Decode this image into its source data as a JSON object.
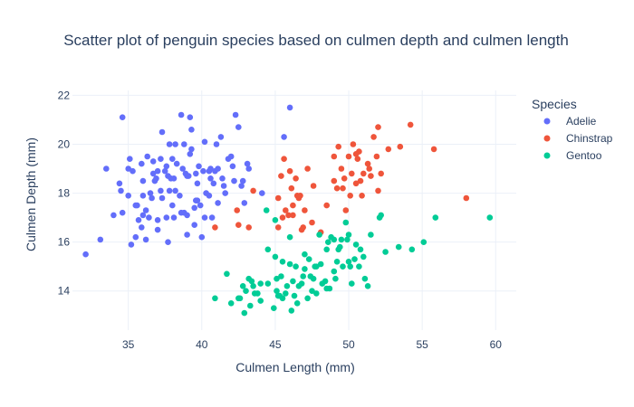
{
  "chart_data": {
    "type": "scatter",
    "title": "Scatter plot of penguin species based on culmen depth and culmen length",
    "xlabel": "Culmen Length (mm)",
    "ylabel": "Culmen Depth (mm)",
    "xlim": [
      31.2,
      61.4
    ],
    "ylim": [
      12.4,
      22.2
    ],
    "x_ticks": [
      35,
      40,
      45,
      50,
      55,
      60
    ],
    "y_ticks": [
      14,
      16,
      18,
      20,
      22
    ],
    "grid": true,
    "legend_title": "Species",
    "legend_position": "top-right",
    "series": [
      {
        "name": "Adelie",
        "color": "#636efa",
        "points": [
          [
            32.1,
            15.5
          ],
          [
            33.1,
            16.1
          ],
          [
            33.5,
            19.0
          ],
          [
            34.0,
            17.1
          ],
          [
            34.4,
            18.4
          ],
          [
            34.5,
            18.1
          ],
          [
            34.6,
            21.1
          ],
          [
            34.6,
            17.2
          ],
          [
            35.0,
            17.9
          ],
          [
            35.1,
            19.4
          ],
          [
            35.2,
            15.9
          ],
          [
            35.3,
            18.9
          ],
          [
            35.5,
            16.2
          ],
          [
            35.5,
            17.5
          ],
          [
            35.6,
            17.5
          ],
          [
            35.7,
            16.9
          ],
          [
            35.9,
            19.2
          ],
          [
            35.9,
            16.6
          ],
          [
            36.0,
            18.5
          ],
          [
            36.0,
            17.1
          ],
          [
            36.2,
            16.1
          ],
          [
            36.2,
            17.3
          ],
          [
            36.3,
            19.5
          ],
          [
            36.4,
            17.0
          ],
          [
            36.5,
            18.0
          ],
          [
            36.6,
            17.8
          ],
          [
            36.7,
            18.8
          ],
          [
            36.7,
            19.3
          ],
          [
            36.8,
            18.5
          ],
          [
            36.9,
            18.6
          ],
          [
            37.0,
            16.9
          ],
          [
            37.2,
            18.1
          ],
          [
            37.2,
            19.4
          ],
          [
            37.3,
            20.5
          ],
          [
            37.3,
            17.8
          ],
          [
            37.5,
            18.9
          ],
          [
            37.6,
            19.1
          ],
          [
            37.6,
            17.0
          ],
          [
            37.7,
            18.7
          ],
          [
            37.7,
            16.0
          ],
          [
            37.8,
            18.1
          ],
          [
            37.8,
            20.0
          ],
          [
            37.9,
            18.6
          ],
          [
            38.1,
            18.6
          ],
          [
            38.1,
            17.0
          ],
          [
            38.2,
            18.1
          ],
          [
            38.2,
            20.0
          ],
          [
            38.3,
            19.2
          ],
          [
            38.5,
            17.9
          ],
          [
            38.6,
            21.2
          ],
          [
            38.6,
            17.2
          ],
          [
            38.7,
            19.0
          ],
          [
            38.8,
            17.2
          ],
          [
            38.8,
            20.0
          ],
          [
            38.9,
            18.8
          ],
          [
            39.0,
            17.1
          ],
          [
            39.0,
            18.7
          ],
          [
            39.1,
            18.7
          ],
          [
            39.2,
            19.6
          ],
          [
            39.2,
            21.1
          ],
          [
            39.3,
            20.6
          ],
          [
            39.5,
            17.4
          ],
          [
            39.5,
            16.7
          ],
          [
            39.6,
            17.7
          ],
          [
            39.6,
            18.8
          ],
          [
            39.7,
            18.4
          ],
          [
            39.7,
            17.7
          ],
          [
            39.8,
            19.1
          ],
          [
            39.9,
            17.5
          ],
          [
            40.1,
            18.9
          ],
          [
            40.2,
            17.0
          ],
          [
            40.2,
            20.1
          ],
          [
            40.3,
            18.0
          ],
          [
            40.5,
            17.9
          ],
          [
            40.5,
            18.9
          ],
          [
            40.6,
            18.6
          ],
          [
            40.6,
            19.0
          ],
          [
            40.7,
            17.0
          ],
          [
            40.8,
            18.4
          ],
          [
            40.9,
            18.9
          ],
          [
            41.0,
            20.0
          ],
          [
            41.1,
            17.6
          ],
          [
            41.1,
            19.0
          ],
          [
            41.3,
            20.3
          ],
          [
            41.4,
            18.6
          ],
          [
            41.5,
            18.3
          ],
          [
            41.6,
            18.0
          ],
          [
            41.8,
            19.4
          ],
          [
            42.0,
            19.5
          ],
          [
            42.1,
            19.1
          ],
          [
            42.2,
            18.5
          ],
          [
            42.3,
            21.2
          ],
          [
            42.5,
            20.7
          ],
          [
            42.7,
            18.3
          ],
          [
            42.8,
            18.5
          ],
          [
            42.9,
            17.6
          ],
          [
            43.1,
            19.2
          ],
          [
            43.2,
            19.0
          ],
          [
            44.1,
            18.0
          ],
          [
            45.6,
            20.3
          ],
          [
            46.0,
            21.5
          ],
          [
            37.0,
            16.5
          ],
          [
            38.0,
            17.5
          ],
          [
            39.0,
            16.3
          ],
          [
            40.0,
            16.2
          ],
          [
            36.0,
            17.9
          ],
          [
            35.0,
            19.0
          ],
          [
            37.0,
            18.9
          ],
          [
            38.0,
            19.4
          ],
          [
            39.3,
            19.8
          ]
        ]
      },
      {
        "name": "Chinstrap",
        "color": "#ef553b",
        "points": [
          [
            40.9,
            16.6
          ],
          [
            42.4,
            17.3
          ],
          [
            42.5,
            16.7
          ],
          [
            43.2,
            16.6
          ],
          [
            43.5,
            18.1
          ],
          [
            45.2,
            16.6
          ],
          [
            45.2,
            17.8
          ],
          [
            45.4,
            18.7
          ],
          [
            45.5,
            17.0
          ],
          [
            45.6,
            19.4
          ],
          [
            45.7,
            17.3
          ],
          [
            45.9,
            17.1
          ],
          [
            46.0,
            18.9
          ],
          [
            46.1,
            18.2
          ],
          [
            46.2,
            17.5
          ],
          [
            46.4,
            18.6
          ],
          [
            46.5,
            17.9
          ],
          [
            46.6,
            17.8
          ],
          [
            46.7,
            17.9
          ],
          [
            46.8,
            16.5
          ],
          [
            46.9,
            16.6
          ],
          [
            47.0,
            17.3
          ],
          [
            47.5,
            16.8
          ],
          [
            47.6,
            18.3
          ],
          [
            48.1,
            16.4
          ],
          [
            48.5,
            17.5
          ],
          [
            49.0,
            19.5
          ],
          [
            49.2,
            18.2
          ],
          [
            49.3,
            19.9
          ],
          [
            49.5,
            19.0
          ],
          [
            49.6,
            18.2
          ],
          [
            49.7,
            18.6
          ],
          [
            49.8,
            17.3
          ],
          [
            50.0,
            19.5
          ],
          [
            50.1,
            17.9
          ],
          [
            50.2,
            18.8
          ],
          [
            50.3,
            20.0
          ],
          [
            50.5,
            18.4
          ],
          [
            50.6,
            19.4
          ],
          [
            50.7,
            19.7
          ],
          [
            50.8,
            18.5
          ],
          [
            50.9,
            17.9
          ],
          [
            51.0,
            18.8
          ],
          [
            51.3,
            19.2
          ],
          [
            51.4,
            19.0
          ],
          [
            51.5,
            18.7
          ],
          [
            51.7,
            20.3
          ],
          [
            51.9,
            19.5
          ],
          [
            52.0,
            18.1
          ],
          [
            52.0,
            20.7
          ],
          [
            52.2,
            18.8
          ],
          [
            52.7,
            19.8
          ],
          [
            53.5,
            19.9
          ],
          [
            54.2,
            20.8
          ],
          [
            55.8,
            19.8
          ],
          [
            58.0,
            17.8
          ],
          [
            46.2,
            17.1
          ],
          [
            47.2,
            19.0
          ],
          [
            49.0,
            18.5
          ],
          [
            50.5,
            19.6
          ]
        ]
      },
      {
        "name": "Gentoo",
        "color": "#00cc96",
        "points": [
          [
            40.9,
            13.7
          ],
          [
            41.7,
            14.7
          ],
          [
            42.0,
            13.5
          ],
          [
            42.5,
            13.7
          ],
          [
            42.6,
            13.7
          ],
          [
            42.8,
            14.2
          ],
          [
            42.9,
            13.1
          ],
          [
            43.2,
            14.5
          ],
          [
            43.3,
            13.4
          ],
          [
            43.4,
            14.4
          ],
          [
            43.5,
            14.2
          ],
          [
            43.6,
            13.9
          ],
          [
            43.8,
            13.9
          ],
          [
            44.0,
            13.6
          ],
          [
            44.4,
            17.3
          ],
          [
            44.5,
            15.7
          ],
          [
            44.9,
            13.3
          ],
          [
            45.0,
            15.4
          ],
          [
            45.1,
            14.5
          ],
          [
            45.2,
            13.8
          ],
          [
            45.3,
            13.8
          ],
          [
            45.4,
            14.6
          ],
          [
            45.5,
            13.7
          ],
          [
            45.7,
            13.9
          ],
          [
            45.8,
            14.2
          ],
          [
            46.1,
            13.2
          ],
          [
            46.2,
            14.4
          ],
          [
            46.4,
            15.0
          ],
          [
            46.5,
            13.5
          ],
          [
            46.6,
            14.2
          ],
          [
            46.8,
            14.3
          ],
          [
            46.9,
            14.6
          ],
          [
            47.2,
            13.7
          ],
          [
            47.3,
            15.3
          ],
          [
            47.4,
            14.6
          ],
          [
            47.5,
            14.0
          ],
          [
            47.6,
            14.5
          ],
          [
            47.7,
            15.0
          ],
          [
            47.8,
            15.0
          ],
          [
            48.1,
            15.1
          ],
          [
            48.2,
            14.3
          ],
          [
            48.4,
            14.4
          ],
          [
            48.5,
            14.1
          ],
          [
            48.6,
            16.0
          ],
          [
            48.7,
            14.1
          ],
          [
            48.8,
            16.2
          ],
          [
            49.0,
            16.1
          ],
          [
            49.1,
            14.5
          ],
          [
            49.2,
            15.2
          ],
          [
            49.3,
            15.7
          ],
          [
            49.4,
            15.8
          ],
          [
            49.5,
            16.1
          ],
          [
            49.6,
            15.0
          ],
          [
            49.8,
            16.8
          ],
          [
            49.9,
            16.1
          ],
          [
            50.0,
            15.2
          ],
          [
            50.1,
            15.0
          ],
          [
            50.2,
            14.3
          ],
          [
            50.4,
            15.3
          ],
          [
            50.5,
            15.9
          ],
          [
            50.7,
            15.0
          ],
          [
            50.8,
            15.7
          ],
          [
            51.1,
            14.5
          ],
          [
            51.3,
            14.2
          ],
          [
            51.5,
            16.3
          ],
          [
            52.1,
            17.0
          ],
          [
            52.2,
            17.1
          ],
          [
            52.5,
            15.6
          ],
          [
            53.4,
            15.8
          ],
          [
            54.3,
            15.7
          ],
          [
            55.1,
            16.0
          ],
          [
            55.9,
            17.0
          ],
          [
            59.6,
            17.0
          ],
          [
            45.0,
            16.9
          ],
          [
            46.0,
            16.2
          ],
          [
            47.0,
            15.5
          ],
          [
            48.0,
            16.3
          ],
          [
            46.0,
            15.1
          ],
          [
            47.0,
            14.9
          ],
          [
            44.5,
            14.3
          ],
          [
            45.5,
            15.2
          ],
          [
            48.5,
            15.7
          ],
          [
            49.0,
            14.8
          ],
          [
            50.0,
            16.3
          ],
          [
            51.0,
            15.4
          ],
          [
            46.3,
            13.8
          ],
          [
            47.8,
            13.9
          ],
          [
            45.1,
            14.0
          ],
          [
            44.0,
            14.3
          ],
          [
            43.0,
            14.0
          ]
        ]
      }
    ]
  }
}
